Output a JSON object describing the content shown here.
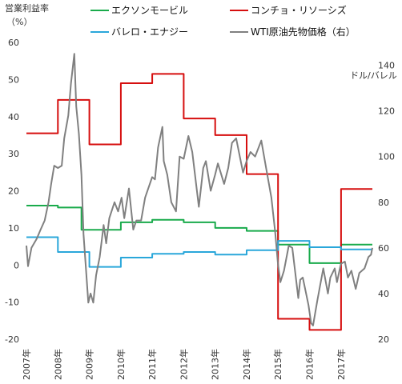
{
  "chart_data": {
    "type": "line",
    "left_axis": {
      "title_line1": "営業利益率",
      "title_line2": "（%）",
      "ylim": [
        -20,
        60
      ],
      "ticks": [
        "60",
        "50",
        "40",
        "30",
        "20",
        "10",
        "0",
        "-10",
        "-20"
      ]
    },
    "right_axis": {
      "title": "ドル/バレル",
      "ylim": [
        20,
        150
      ],
      "ticks": [
        "140",
        "120",
        "100",
        "80",
        "60",
        "40",
        "20"
      ]
    },
    "x_axis": {
      "range": [
        "2007-01-01",
        "2017-12-31"
      ],
      "tick_labels": [
        "2007年",
        "2008年",
        "2009年",
        "2010年",
        "2011年",
        "2012年",
        "2013年",
        "2014年",
        "2015年",
        "2016年",
        "2017年"
      ]
    },
    "grid": false,
    "legend_position": "top",
    "series": [
      {
        "name": "エクソンモービル",
        "axis": "left",
        "color": "#1aab4c",
        "step": [
          [
            "2007-01-01",
            16
          ],
          [
            "2008-01-01",
            15.5
          ],
          [
            "2008-10-01",
            9.5
          ],
          [
            "2010-01-01",
            11.5
          ],
          [
            "2011-01-01",
            12.2
          ],
          [
            "2012-01-01",
            11.5
          ],
          [
            "2013-01-01",
            10.0
          ],
          [
            "2014-01-01",
            9.2
          ],
          [
            "2015-01-01",
            5.5
          ],
          [
            "2016-01-01",
            0.5
          ],
          [
            "2017-01-01",
            5.5
          ],
          [
            "2017-12-31",
            5.5
          ]
        ]
      },
      {
        "name": "コンチョ・リソーシズ",
        "axis": "left",
        "color": "#d60f0f",
        "step": [
          [
            "2007-01-01",
            35.5
          ],
          [
            "2008-01-01",
            44.5
          ],
          [
            "2009-01-01",
            32.5
          ],
          [
            "2010-01-01",
            49
          ],
          [
            "2011-01-01",
            51.5
          ],
          [
            "2012-01-01",
            39.5
          ],
          [
            "2013-01-01",
            35
          ],
          [
            "2014-01-01",
            24.5
          ],
          [
            "2015-01-01",
            -14.5
          ],
          [
            "2016-01-01",
            -17.5
          ],
          [
            "2017-01-01",
            20.5
          ],
          [
            "2017-12-31",
            20.5
          ]
        ]
      },
      {
        "name": "バレロ・エナジー",
        "axis": "left",
        "color": "#2aa7da",
        "step": [
          [
            "2007-01-01",
            7.5
          ],
          [
            "2008-01-01",
            3.5
          ],
          [
            "2009-01-01",
            -0.5
          ],
          [
            "2010-01-01",
            2
          ],
          [
            "2011-01-01",
            3
          ],
          [
            "2012-01-01",
            3.5
          ],
          [
            "2013-01-01",
            2.8
          ],
          [
            "2014-01-01",
            4
          ],
          [
            "2015-01-01",
            6.5
          ],
          [
            "2016-01-01",
            4.8
          ],
          [
            "2017-01-01",
            4.2
          ],
          [
            "2017-12-31",
            4.2
          ]
        ]
      },
      {
        "name": "WTI原油先物価格（右）",
        "axis": "right",
        "color": "#808080",
        "points": [
          [
            "2007-01-01",
            61
          ],
          [
            "2007-01-20",
            52
          ],
          [
            "2007-03-01",
            60
          ],
          [
            "2007-05-01",
            64
          ],
          [
            "2007-06-15",
            68
          ],
          [
            "2007-08-01",
            72
          ],
          [
            "2007-09-15",
            80
          ],
          [
            "2007-10-15",
            88
          ],
          [
            "2007-11-20",
            96
          ],
          [
            "2008-01-01",
            95
          ],
          [
            "2008-02-15",
            96
          ],
          [
            "2008-03-15",
            108
          ],
          [
            "2008-05-01",
            118
          ],
          [
            "2008-06-01",
            132
          ],
          [
            "2008-07-10",
            145
          ],
          [
            "2008-08-01",
            122
          ],
          [
            "2008-09-01",
            110
          ],
          [
            "2008-10-01",
            92
          ],
          [
            "2008-10-25",
            66
          ],
          [
            "2008-11-20",
            52
          ],
          [
            "2008-12-20",
            36
          ],
          [
            "2009-01-15",
            40
          ],
          [
            "2009-02-15",
            36
          ],
          [
            "2009-03-20",
            48
          ],
          [
            "2009-05-01",
            56
          ],
          [
            "2009-06-15",
            70
          ],
          [
            "2009-07-15",
            62
          ],
          [
            "2009-08-20",
            73
          ],
          [
            "2009-10-20",
            80
          ],
          [
            "2009-12-01",
            76
          ],
          [
            "2010-01-10",
            82
          ],
          [
            "2010-02-10",
            73
          ],
          [
            "2010-04-05",
            86
          ],
          [
            "2010-05-25",
            68
          ],
          [
            "2010-07-01",
            72
          ],
          [
            "2010-08-25",
            72
          ],
          [
            "2010-10-10",
            82
          ],
          [
            "2010-12-31",
            91
          ],
          [
            "2011-02-01",
            90
          ],
          [
            "2011-03-10",
            104
          ],
          [
            "2011-04-29",
            113
          ],
          [
            "2011-05-15",
            98
          ],
          [
            "2011-06-25",
            92
          ],
          [
            "2011-08-10",
            80
          ],
          [
            "2011-10-04",
            76
          ],
          [
            "2011-11-15",
            100
          ],
          [
            "2012-01-01",
            99
          ],
          [
            "2012-02-25",
            109
          ],
          [
            "2012-04-10",
            102
          ],
          [
            "2012-06-25",
            78
          ],
          [
            "2012-08-15",
            95
          ],
          [
            "2012-09-15",
            98
          ],
          [
            "2012-11-10",
            85
          ],
          [
            "2012-12-31",
            92
          ],
          [
            "2013-02-01",
            97
          ],
          [
            "2013-04-15",
            88
          ],
          [
            "2013-06-01",
            95
          ],
          [
            "2013-07-15",
            106
          ],
          [
            "2013-09-01",
            108
          ],
          [
            "2013-11-20",
            93
          ],
          [
            "2013-12-31",
            98
          ],
          [
            "2014-02-15",
            102
          ],
          [
            "2014-04-10",
            100
          ],
          [
            "2014-06-20",
            107
          ],
          [
            "2014-08-15",
            95
          ],
          [
            "2014-10-15",
            82
          ],
          [
            "2014-11-28",
            67
          ],
          [
            "2014-12-31",
            53
          ],
          [
            "2015-01-28",
            45
          ],
          [
            "2015-03-10",
            50
          ],
          [
            "2015-05-05",
            61
          ],
          [
            "2015-06-15",
            60
          ],
          [
            "2015-08-24",
            38
          ],
          [
            "2015-09-15",
            46
          ],
          [
            "2015-10-15",
            47
          ],
          [
            "2015-12-20",
            35
          ],
          [
            "2016-01-20",
            27
          ],
          [
            "2016-02-11",
            26
          ],
          [
            "2016-04-01",
            37
          ],
          [
            "2016-06-09",
            51
          ],
          [
            "2016-08-02",
            40
          ],
          [
            "2016-08-30",
            47
          ],
          [
            "2016-10-20",
            51
          ],
          [
            "2016-11-15",
            45
          ],
          [
            "2016-12-31",
            53
          ],
          [
            "2017-02-15",
            54
          ],
          [
            "2017-03-22",
            47
          ],
          [
            "2017-05-01",
            50
          ],
          [
            "2017-06-21",
            42
          ],
          [
            "2017-08-01",
            49
          ],
          [
            "2017-10-01",
            51
          ],
          [
            "2017-11-15",
            56
          ],
          [
            "2017-12-15",
            57
          ],
          [
            "2017-12-31",
            60
          ]
        ]
      }
    ]
  }
}
